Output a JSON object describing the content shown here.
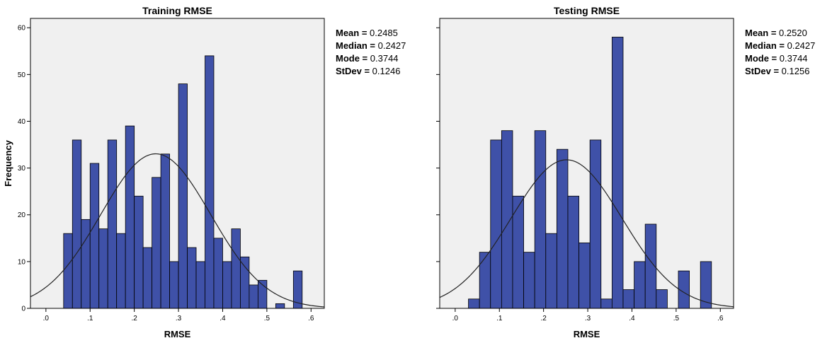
{
  "chart_data": [
    {
      "type": "bar",
      "subtype": "histogram",
      "title": "Training RMSE",
      "xlabel": "RMSE",
      "ylabel": "Frequency",
      "xlim": [
        -0.035,
        0.63
      ],
      "ylim": [
        0,
        62
      ],
      "xticks": [
        0.0,
        0.1,
        0.2,
        0.3,
        0.4,
        0.5,
        0.6
      ],
      "xtick_labels": [
        ".0",
        ".1",
        ".2",
        ".3",
        ".4",
        ".5",
        ".6"
      ],
      "yticks": [
        0,
        10,
        20,
        30,
        40,
        50,
        60
      ],
      "bin_start": 0.04,
      "bin_width": 0.02,
      "values": [
        16,
        36,
        19,
        31,
        17,
        36,
        16,
        39,
        24,
        13,
        28,
        33,
        10,
        48,
        13,
        10,
        54,
        15,
        10,
        17,
        11,
        5,
        6,
        0,
        1,
        0,
        8
      ],
      "normal_curve": {
        "mean": 0.2485,
        "sd": 0.1246
      },
      "stats": [
        {
          "key": "Mean",
          "value": "0.2485"
        },
        {
          "key": "Median",
          "value": "0.2427"
        },
        {
          "key": "Mode",
          "value": "0.3744"
        },
        {
          "key": "StDev",
          "value": "0.1246"
        }
      ],
      "bar_color": "#3f51a8",
      "plot_background": "#f0f0f0",
      "grid": false
    },
    {
      "type": "bar",
      "subtype": "histogram",
      "title": "Testing RMSE",
      "xlabel": "RMSE",
      "ylabel": "",
      "xlim": [
        -0.035,
        0.63
      ],
      "ylim": [
        0,
        62
      ],
      "xticks": [
        0.0,
        0.1,
        0.2,
        0.3,
        0.4,
        0.5,
        0.6
      ],
      "xtick_labels": [
        ".0",
        ".1",
        ".2",
        ".3",
        ".4",
        ".5",
        ".6"
      ],
      "yticks": [
        0,
        10,
        20,
        30,
        40,
        50,
        60
      ],
      "bin_start": 0.03,
      "bin_width": 0.025,
      "values": [
        2,
        12,
        36,
        38,
        24,
        12,
        38,
        16,
        34,
        24,
        14,
        36,
        2,
        58,
        4,
        10,
        18,
        4,
        0,
        8,
        0,
        10
      ],
      "normal_curve": {
        "mean": 0.252,
        "sd": 0.1256
      },
      "stats": [
        {
          "key": "Mean",
          "value": "0.2520"
        },
        {
          "key": "Median",
          "value": "0.2427"
        },
        {
          "key": "Mode",
          "value": "0.3744"
        },
        {
          "key": "StDev",
          "value": "0.1256"
        }
      ],
      "bar_color": "#3f51a8",
      "plot_background": "#f0f0f0",
      "grid": false
    }
  ]
}
